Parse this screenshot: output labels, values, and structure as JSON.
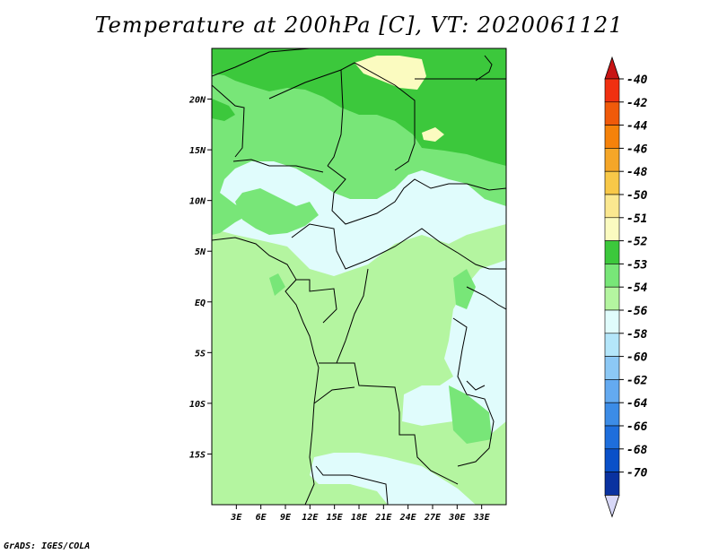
{
  "title": "Temperature at 200hPa [C], VT: 2020061121",
  "credit": "GrADS: IGES/COLA",
  "map": {
    "lon_range": [
      0,
      36
    ],
    "lat_range": [
      -20,
      25
    ],
    "x_ticks": [
      {
        "lon": 3,
        "label": "3E"
      },
      {
        "lon": 6,
        "label": "6E"
      },
      {
        "lon": 9,
        "label": "9E"
      },
      {
        "lon": 12,
        "label": "12E"
      },
      {
        "lon": 15,
        "label": "15E"
      },
      {
        "lon": 18,
        "label": "18E"
      },
      {
        "lon": 21,
        "label": "21E"
      },
      {
        "lon": 24,
        "label": "24E"
      },
      {
        "lon": 27,
        "label": "27E"
      },
      {
        "lon": 30,
        "label": "30E"
      },
      {
        "lon": 33,
        "label": "33E"
      }
    ],
    "y_ticks": [
      {
        "lat": 20,
        "label": "20N"
      },
      {
        "lat": 15,
        "label": "15N"
      },
      {
        "lat": 10,
        "label": "10N"
      },
      {
        "lat": 5,
        "label": "5N"
      },
      {
        "lat": 0,
        "label": "EQ"
      },
      {
        "lat": -5,
        "label": "5S"
      },
      {
        "lat": -10,
        "label": "10S"
      },
      {
        "lat": -15,
        "label": "15S"
      }
    ]
  },
  "colorbar": {
    "top_color": "#c81414",
    "bottom_color": "#d8d8f8",
    "bins": [
      {
        "color": "#f03010"
      },
      {
        "color": "#f05a0a"
      },
      {
        "color": "#f5820a"
      },
      {
        "color": "#f5a628"
      },
      {
        "color": "#f8c848"
      },
      {
        "color": "#fbe890"
      },
      {
        "color": "#fbfbc0"
      },
      {
        "color": "#3cc83c"
      },
      {
        "color": "#78e678"
      },
      {
        "color": "#b4f5a0"
      },
      {
        "color": "#e0fcfc"
      },
      {
        "color": "#b4e6fa"
      },
      {
        "color": "#8cc8f5"
      },
      {
        "color": "#64aaf0"
      },
      {
        "color": "#3c8ce6"
      },
      {
        "color": "#1e6edc"
      },
      {
        "color": "#0a50c8"
      },
      {
        "color": "#0a32a0"
      }
    ],
    "labels": [
      "-40",
      "-42",
      "-44",
      "-46",
      "-48",
      "-50",
      "-51",
      "-52",
      "-53",
      "-54",
      "-56",
      "-58",
      "-60",
      "-62",
      "-64",
      "-66",
      "-68",
      "-70"
    ]
  },
  "field_colors": {
    "c52": "#3cc83c",
    "c53": "#78e678",
    "c54": "#b4f5a0",
    "c56": "#e0fcfc",
    "c51": "#fbfbc0"
  }
}
